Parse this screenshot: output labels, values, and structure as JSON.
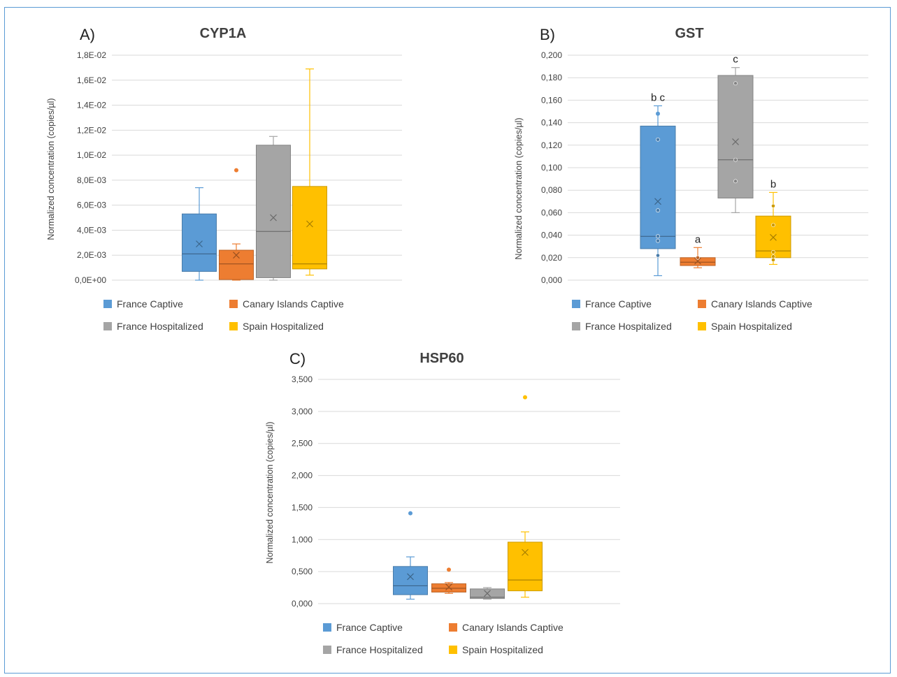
{
  "colors": {
    "France Captive": "#5b9bd5",
    "Canary Islands Captive": "#ed7d31",
    "France Hospitalized": "#a5a5a5",
    "Spain Hospitalized": "#ffc000",
    "grid": "#d9d9d9"
  },
  "chart_data": [
    {
      "type": "box",
      "panel_label": "A)",
      "title": "CYP1A",
      "ylabel": "Normalized concentration (copies/µl)",
      "ylim": [
        0,
        0.018
      ],
      "yticks": [
        "0,0E+00",
        "2,0E-03",
        "4,0E-03",
        "6,0E-03",
        "8,0E-03",
        "1,0E-02",
        "1,2E-02",
        "1,4E-02",
        "1,6E-02",
        "1,8E-02"
      ],
      "legend": [
        "France Captive",
        "Canary Islands Captive",
        "France Hospitalized",
        "Spain Hospitalized"
      ],
      "series": [
        {
          "name": "France Captive",
          "min": 0.0,
          "q1": 0.0007,
          "median": 0.0021,
          "q3": 0.0053,
          "max": 0.0074,
          "mean": 0.0029,
          "points": [],
          "outliers": []
        },
        {
          "name": "Canary Islands Captive",
          "min": 0.0,
          "q1": 5e-05,
          "median": 0.0013,
          "q3": 0.0024,
          "max": 0.0029,
          "mean": 0.002,
          "points": [],
          "outliers": [
            0.0088
          ]
        },
        {
          "name": "France Hospitalized",
          "min": 0.0,
          "q1": 0.0002,
          "median": 0.0039,
          "q3": 0.0108,
          "max": 0.0115,
          "mean": 0.005,
          "points": [],
          "outliers": []
        },
        {
          "name": "Spain Hospitalized",
          "min": 0.0004,
          "q1": 0.0009,
          "median": 0.0013,
          "q3": 0.0075,
          "max": 0.0169,
          "mean": 0.0045,
          "points": [],
          "outliers": []
        }
      ],
      "annotations": []
    },
    {
      "type": "box",
      "panel_label": "B)",
      "title": "GST",
      "ylabel": "Normalized concentration (copies/µl)",
      "ylim": [
        0,
        0.2
      ],
      "yticks": [
        "0,000",
        "0,020",
        "0,040",
        "0,060",
        "0,080",
        "0,100",
        "0,120",
        "0,140",
        "0,160",
        "0,180",
        "0,200"
      ],
      "legend": [
        "France Captive",
        "Canary Islands Captive",
        "France Hospitalized",
        "Spain Hospitalized"
      ],
      "series": [
        {
          "name": "France Captive",
          "min": 0.004,
          "q1": 0.028,
          "median": 0.039,
          "q3": 0.137,
          "max": 0.155,
          "mean": 0.07,
          "points": [
            0.022,
            0.035,
            0.039,
            0.062,
            0.125
          ],
          "outliers": [
            0.148
          ]
        },
        {
          "name": "Canary Islands Captive",
          "min": 0.011,
          "q1": 0.013,
          "median": 0.016,
          "q3": 0.02,
          "max": 0.029,
          "mean": 0.017,
          "points": [
            0.02
          ],
          "outliers": []
        },
        {
          "name": "France Hospitalized",
          "min": 0.06,
          "q1": 0.073,
          "median": 0.107,
          "q3": 0.182,
          "max": 0.189,
          "mean": 0.123,
          "points": [
            0.088,
            0.107,
            0.175
          ],
          "outliers": []
        },
        {
          "name": "Spain Hospitalized",
          "min": 0.014,
          "q1": 0.02,
          "median": 0.026,
          "q3": 0.057,
          "max": 0.078,
          "mean": 0.038,
          "points": [
            0.018,
            0.021,
            0.025,
            0.049,
            0.066
          ],
          "outliers": []
        }
      ],
      "annotations": [
        "b c",
        "a",
        "c",
        "b"
      ]
    },
    {
      "type": "box",
      "panel_label": "C)",
      "title": "HSP60",
      "ylabel": "Normalized concentration (copies/µl)",
      "ylim": [
        0,
        3.5
      ],
      "yticks": [
        "0,000",
        "0,500",
        "1,000",
        "1,500",
        "2,000",
        "2,500",
        "3,000",
        "3,500"
      ],
      "legend": [
        "France Captive",
        "Canary Islands Captive",
        "France Hospitalized",
        "Spain Hospitalized"
      ],
      "series": [
        {
          "name": "France Captive",
          "min": 0.07,
          "q1": 0.14,
          "median": 0.28,
          "q3": 0.58,
          "max": 0.73,
          "mean": 0.42,
          "points": [],
          "outliers": [
            1.41
          ]
        },
        {
          "name": "Canary Islands Captive",
          "min": 0.16,
          "q1": 0.18,
          "median": 0.24,
          "q3": 0.31,
          "max": 0.33,
          "mean": 0.26,
          "points": [],
          "outliers": [
            0.53
          ]
        },
        {
          "name": "France Hospitalized",
          "min": 0.07,
          "q1": 0.08,
          "median": 0.1,
          "q3": 0.23,
          "max": 0.25,
          "mean": 0.16,
          "points": [],
          "outliers": []
        },
        {
          "name": "Spain Hospitalized",
          "min": 0.1,
          "q1": 0.2,
          "median": 0.37,
          "q3": 0.96,
          "max": 1.12,
          "mean": 0.8,
          "points": [],
          "outliers": [
            3.22
          ]
        }
      ],
      "annotations": []
    }
  ]
}
